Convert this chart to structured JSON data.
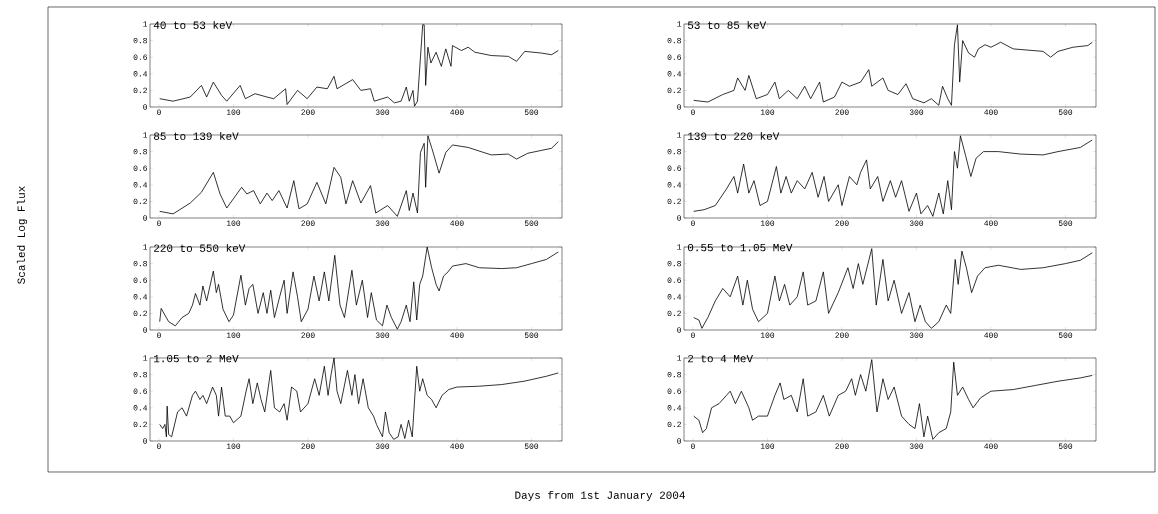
{
  "chart_data": [
    {
      "type": "line",
      "title": "40 to 53 keV",
      "color": "#000000",
      "xlim": [
        -12,
        541
      ],
      "ylim": [
        0,
        1
      ],
      "xticks": [
        0,
        100,
        200,
        300,
        400,
        500
      ],
      "yticks": [
        0,
        0.2,
        0.4,
        0.6,
        0.8,
        1
      ],
      "x": [
        1,
        19,
        42,
        57,
        64,
        73,
        84,
        91,
        109,
        116,
        129,
        145,
        154,
        170,
        172,
        186,
        199,
        212,
        226,
        235,
        239,
        260,
        271,
        284,
        289,
        307,
        316,
        325,
        332,
        336,
        341,
        343,
        347,
        351,
        354,
        356,
        358,
        361,
        365,
        372,
        379,
        385,
        392,
        394,
        406,
        415,
        424,
        446,
        469,
        480,
        491,
        513,
        527,
        536
      ],
      "values": [
        0.1,
        0.07,
        0.12,
        0.26,
        0.12,
        0.3,
        0.14,
        0.07,
        0.26,
        0.1,
        0.16,
        0.12,
        0.1,
        0.22,
        0.03,
        0.2,
        0.1,
        0.24,
        0.22,
        0.37,
        0.22,
        0.33,
        0.2,
        0.22,
        0.07,
        0.12,
        0.05,
        0.07,
        0.24,
        0.07,
        0.2,
        0.01,
        0.07,
        0.6,
        0.99,
        0.99,
        0.26,
        0.72,
        0.53,
        0.66,
        0.49,
        0.7,
        0.49,
        0.74,
        0.68,
        0.72,
        0.66,
        0.62,
        0.61,
        0.55,
        0.67,
        0.65,
        0.63,
        0.68
      ]
    },
    {
      "type": "line",
      "title": "53 to 85 keV",
      "color": "#000000",
      "xlim": [
        -12,
        541
      ],
      "ylim": [
        0,
        1
      ],
      "xticks": [
        0,
        100,
        200,
        300,
        400,
        500
      ],
      "yticks": [
        0,
        0.2,
        0.4,
        0.6,
        0.8,
        1
      ],
      "x": [
        1,
        20,
        40,
        55,
        60,
        70,
        75,
        85,
        100,
        110,
        116,
        128,
        140,
        150,
        158,
        170,
        175,
        190,
        200,
        210,
        225,
        236,
        240,
        255,
        262,
        275,
        286,
        295,
        310,
        320,
        330,
        335,
        342,
        347,
        351,
        355,
        358,
        362,
        370,
        378,
        383,
        392,
        400,
        413,
        430,
        470,
        480,
        490,
        510,
        530,
        536
      ],
      "values": [
        0.08,
        0.06,
        0.15,
        0.2,
        0.35,
        0.2,
        0.38,
        0.1,
        0.15,
        0.3,
        0.1,
        0.2,
        0.1,
        0.25,
        0.1,
        0.3,
        0.06,
        0.12,
        0.3,
        0.25,
        0.3,
        0.45,
        0.25,
        0.35,
        0.2,
        0.15,
        0.28,
        0.1,
        0.05,
        0.1,
        0.02,
        0.25,
        0.1,
        0.02,
        0.75,
        0.99,
        0.3,
        0.8,
        0.65,
        0.6,
        0.7,
        0.75,
        0.72,
        0.78,
        0.7,
        0.67,
        0.6,
        0.67,
        0.72,
        0.74,
        0.78
      ]
    },
    {
      "type": "line",
      "title": "85 to 139 keV",
      "annotations": [
        "Scaled Log Flux"
      ],
      "color": "#000000",
      "xlim": [
        -12,
        541
      ],
      "ylim": [
        0,
        1
      ],
      "xticks": [
        0,
        100,
        200,
        300,
        400,
        500
      ],
      "yticks": [
        0,
        0.2,
        0.4,
        0.6,
        0.8,
        1
      ],
      "x": [
        1,
        19,
        42,
        57,
        73,
        82,
        91,
        111,
        118,
        127,
        136,
        145,
        152,
        161,
        172,
        181,
        188,
        199,
        212,
        224,
        235,
        244,
        251,
        260,
        271,
        284,
        291,
        307,
        320,
        332,
        336,
        341,
        347,
        351,
        356,
        358,
        361,
        367,
        376,
        385,
        394,
        415,
        446,
        469,
        480,
        495,
        527,
        536
      ],
      "values": [
        0.08,
        0.05,
        0.18,
        0.31,
        0.55,
        0.29,
        0.12,
        0.37,
        0.29,
        0.33,
        0.17,
        0.3,
        0.21,
        0.33,
        0.12,
        0.45,
        0.11,
        0.17,
        0.43,
        0.17,
        0.61,
        0.49,
        0.17,
        0.45,
        0.18,
        0.39,
        0.06,
        0.15,
        0.02,
        0.33,
        0.09,
        0.3,
        0.06,
        0.79,
        0.9,
        0.37,
        0.99,
        0.82,
        0.54,
        0.79,
        0.88,
        0.85,
        0.76,
        0.77,
        0.71,
        0.78,
        0.84,
        0.92
      ]
    },
    {
      "type": "line",
      "title": "139 to 220 keV",
      "color": "#000000",
      "xlim": [
        -12,
        541
      ],
      "ylim": [
        0,
        1
      ],
      "xticks": [
        0,
        100,
        200,
        300,
        400,
        500
      ],
      "yticks": [
        0,
        0.2,
        0.4,
        0.6,
        0.8,
        1
      ],
      "x": [
        1,
        15,
        30,
        45,
        55,
        60,
        68,
        75,
        82,
        90,
        100,
        112,
        118,
        125,
        132,
        140,
        150,
        160,
        168,
        176,
        182,
        195,
        200,
        210,
        220,
        225,
        233,
        238,
        248,
        255,
        265,
        272,
        280,
        290,
        300,
        306,
        315,
        322,
        330,
        336,
        342,
        347,
        351,
        355,
        359,
        366,
        373,
        380,
        390,
        410,
        440,
        470,
        490,
        520,
        536
      ],
      "values": [
        0.08,
        0.1,
        0.15,
        0.35,
        0.5,
        0.3,
        0.65,
        0.3,
        0.45,
        0.15,
        0.2,
        0.62,
        0.3,
        0.5,
        0.3,
        0.45,
        0.35,
        0.55,
        0.25,
        0.5,
        0.2,
        0.4,
        0.15,
        0.5,
        0.4,
        0.55,
        0.7,
        0.35,
        0.5,
        0.2,
        0.45,
        0.25,
        0.45,
        0.08,
        0.3,
        0.05,
        0.15,
        0.02,
        0.3,
        0.05,
        0.45,
        0.1,
        0.8,
        0.6,
        0.99,
        0.75,
        0.5,
        0.72,
        0.8,
        0.8,
        0.77,
        0.76,
        0.8,
        0.85,
        0.94
      ]
    },
    {
      "type": "line",
      "title": "220 to 550 keV",
      "color": "#000000",
      "xlim": [
        -12,
        541
      ],
      "ylim": [
        0,
        1
      ],
      "xticks": [
        0,
        100,
        200,
        300,
        400,
        500
      ],
      "yticks": [
        0,
        0.2,
        0.4,
        0.6,
        0.8,
        1
      ],
      "x": [
        1,
        3,
        13,
        22,
        31,
        40,
        45,
        49,
        55,
        59,
        64,
        73,
        77,
        80,
        86,
        94,
        100,
        110,
        116,
        121,
        126,
        133,
        140,
        145,
        150,
        155,
        162,
        168,
        172,
        180,
        186,
        191,
        200,
        208,
        215,
        222,
        228,
        236,
        243,
        249,
        259,
        265,
        273,
        280,
        285,
        292,
        300,
        306,
        312,
        320,
        325,
        332,
        337,
        342,
        346,
        350,
        354,
        360,
        366,
        372,
        376,
        382,
        388,
        394,
        412,
        430,
        460,
        480,
        500,
        520,
        536
      ],
      "values": [
        0.1,
        0.26,
        0.1,
        0.05,
        0.15,
        0.2,
        0.3,
        0.44,
        0.3,
        0.53,
        0.35,
        0.71,
        0.45,
        0.55,
        0.25,
        0.1,
        0.18,
        0.66,
        0.3,
        0.5,
        0.55,
        0.2,
        0.45,
        0.2,
        0.48,
        0.15,
        0.4,
        0.6,
        0.2,
        0.7,
        0.4,
        0.1,
        0.25,
        0.65,
        0.35,
        0.7,
        0.35,
        0.9,
        0.3,
        0.15,
        0.72,
        0.3,
        0.6,
        0.15,
        0.45,
        0.12,
        0.05,
        0.3,
        0.15,
        0.01,
        0.1,
        0.3,
        0.1,
        0.58,
        0.12,
        0.55,
        0.65,
        1.0,
        0.75,
        0.55,
        0.47,
        0.65,
        0.7,
        0.77,
        0.8,
        0.75,
        0.74,
        0.75,
        0.8,
        0.85,
        0.94
      ]
    },
    {
      "type": "line",
      "title": "0.55 to 1.05 MeV",
      "color": "#000000",
      "xlim": [
        -12,
        541
      ],
      "ylim": [
        0,
        1
      ],
      "xticks": [
        0,
        100,
        200,
        300,
        400,
        500
      ],
      "yticks": [
        0,
        0.2,
        0.4,
        0.6,
        0.8,
        1
      ],
      "x": [
        1,
        8,
        12,
        20,
        30,
        40,
        50,
        60,
        67,
        73,
        80,
        88,
        100,
        110,
        116,
        123,
        130,
        140,
        148,
        154,
        165,
        175,
        182,
        195,
        208,
        215,
        222,
        228,
        240,
        246,
        255,
        262,
        270,
        280,
        290,
        298,
        305,
        312,
        320,
        330,
        340,
        346,
        352,
        356,
        361,
        367,
        374,
        382,
        392,
        410,
        440,
        470,
        500,
        520,
        536
      ],
      "values": [
        0.15,
        0.12,
        0.02,
        0.15,
        0.35,
        0.5,
        0.4,
        0.65,
        0.3,
        0.6,
        0.25,
        0.1,
        0.2,
        0.65,
        0.35,
        0.55,
        0.3,
        0.4,
        0.7,
        0.3,
        0.35,
        0.7,
        0.2,
        0.45,
        0.75,
        0.5,
        0.8,
        0.55,
        0.98,
        0.3,
        0.85,
        0.35,
        0.6,
        0.2,
        0.45,
        0.1,
        0.3,
        0.1,
        0.02,
        0.1,
        0.3,
        0.2,
        0.85,
        0.55,
        0.95,
        0.75,
        0.45,
        0.65,
        0.75,
        0.78,
        0.73,
        0.75,
        0.8,
        0.84,
        0.93
      ]
    },
    {
      "type": "line",
      "title": "1.05 to 2 MeV",
      "color": "#000000",
      "xlim": [
        -12,
        541
      ],
      "ylim": [
        0,
        1
      ],
      "xticks": [
        0,
        100,
        200,
        300,
        400,
        500
      ],
      "yticks": [
        0,
        0.2,
        0.4,
        0.6,
        0.8,
        1
      ],
      "x": [
        1,
        5,
        8,
        10,
        11,
        13,
        17,
        25,
        31,
        37,
        45,
        49,
        55,
        59,
        64,
        72,
        77,
        80,
        84,
        89,
        95,
        100,
        110,
        117,
        121,
        126,
        132,
        137,
        142,
        150,
        155,
        162,
        168,
        172,
        178,
        185,
        190,
        200,
        209,
        215,
        222,
        227,
        231,
        235,
        239,
        244,
        253,
        259,
        263,
        268,
        274,
        281,
        288,
        292,
        300,
        304,
        309,
        315,
        321,
        325,
        330,
        335,
        340,
        346,
        350,
        354,
        360,
        366,
        372,
        380,
        389,
        400,
        430,
        460,
        490,
        520,
        536
      ],
      "values": [
        0.2,
        0.15,
        0.2,
        0.05,
        0.42,
        0.08,
        0.05,
        0.35,
        0.4,
        0.3,
        0.55,
        0.6,
        0.5,
        0.55,
        0.45,
        0.65,
        0.55,
        0.3,
        0.65,
        0.3,
        0.3,
        0.22,
        0.3,
        0.6,
        0.75,
        0.45,
        0.7,
        0.5,
        0.35,
        0.85,
        0.4,
        0.35,
        0.45,
        0.25,
        0.65,
        0.6,
        0.35,
        0.45,
        0.75,
        0.55,
        0.9,
        0.55,
        0.8,
        1.0,
        0.6,
        0.45,
        0.85,
        0.55,
        0.8,
        0.45,
        0.75,
        0.4,
        0.3,
        0.2,
        0.05,
        0.35,
        0.1,
        0.02,
        0.05,
        0.2,
        0.03,
        0.25,
        0.05,
        0.9,
        0.6,
        0.75,
        0.55,
        0.5,
        0.4,
        0.55,
        0.62,
        0.65,
        0.66,
        0.68,
        0.72,
        0.78,
        0.82
      ]
    },
    {
      "type": "line",
      "title": "2 to 4 MeV",
      "xlabel": "Days from 1st January 2004",
      "color": "#000000",
      "xlim": [
        -12,
        541
      ],
      "ylim": [
        0,
        1
      ],
      "xticks": [
        0,
        100,
        200,
        300,
        400,
        500
      ],
      "yticks": [
        0,
        0.2,
        0.4,
        0.6,
        0.8,
        1
      ],
      "x": [
        1,
        8,
        13,
        18,
        25,
        35,
        45,
        50,
        57,
        65,
        75,
        80,
        88,
        100,
        110,
        117,
        122,
        132,
        140,
        148,
        154,
        165,
        175,
        183,
        195,
        205,
        213,
        218,
        225,
        232,
        240,
        247,
        255,
        262,
        270,
        280,
        290,
        298,
        304,
        310,
        315,
        322,
        330,
        340,
        346,
        350,
        355,
        362,
        370,
        376,
        386,
        400,
        430,
        460,
        490,
        520,
        536
      ],
      "values": [
        0.3,
        0.25,
        0.1,
        0.15,
        0.4,
        0.45,
        0.55,
        0.6,
        0.45,
        0.6,
        0.4,
        0.25,
        0.3,
        0.3,
        0.55,
        0.7,
        0.5,
        0.55,
        0.35,
        0.75,
        0.3,
        0.35,
        0.55,
        0.3,
        0.55,
        0.6,
        0.75,
        0.55,
        0.8,
        0.6,
        0.98,
        0.35,
        0.75,
        0.5,
        0.65,
        0.3,
        0.2,
        0.15,
        0.45,
        0.05,
        0.3,
        0.02,
        0.1,
        0.15,
        0.35,
        0.95,
        0.55,
        0.65,
        0.5,
        0.4,
        0.52,
        0.6,
        0.62,
        0.67,
        0.72,
        0.76,
        0.79
      ]
    }
  ]
}
